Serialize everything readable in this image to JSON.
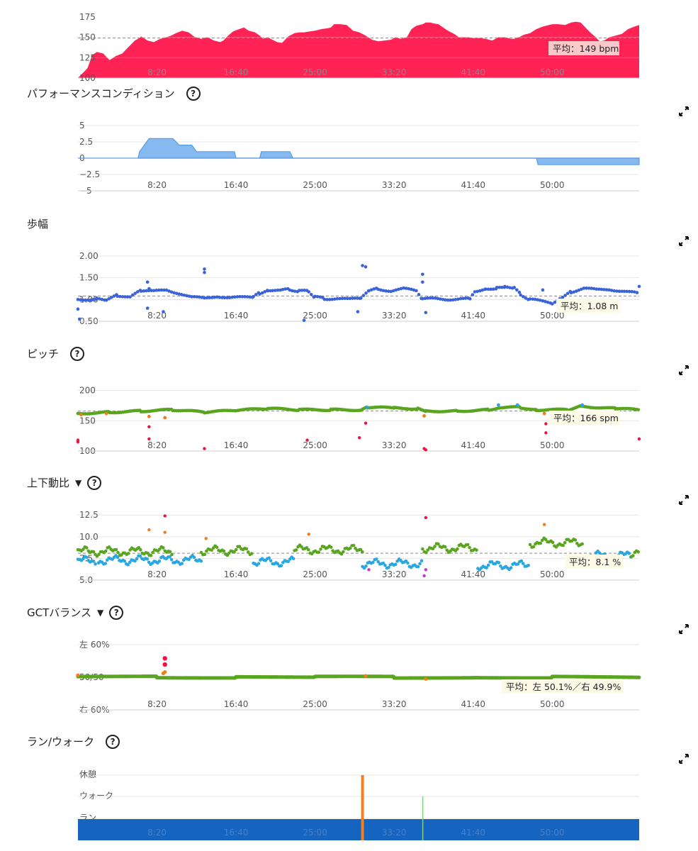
{
  "x_ticks": [
    "8:20",
    "16:40",
    "25:00",
    "33:20",
    "41:40",
    "50:00"
  ],
  "sections": {
    "condition": {
      "title": "パフォーマンスコンディション"
    },
    "stride": {
      "title": "歩幅"
    },
    "pitch": {
      "title": "ピッチ"
    },
    "vratio": {
      "title": "上下動比"
    },
    "gct": {
      "title": "GCTバランス"
    },
    "runwalk": {
      "title": "ラン/ウォーク"
    }
  },
  "caret_symbol": "▼",
  "help_symbol": "?",
  "colors": {
    "hr": "#ff2255",
    "condition": "#86b9ef",
    "stride": "#3b63d9",
    "green": "#5aa51f",
    "blue": "#28a7e1",
    "orange": "#ee7e1a",
    "red": "#ee1144",
    "magenta": "#cc33cc",
    "run": "#1565c0",
    "rest": "#f08020",
    "walk": "#7fd17f"
  },
  "chart_data": [
    {
      "id": "hr",
      "type": "area",
      "y_ticks": [
        "175",
        "150",
        "125",
        "100"
      ],
      "ylim": [
        100,
        180
      ],
      "average": 149,
      "avg_label": "平均：149 bpm",
      "x": [
        0,
        60,
        90,
        120,
        160,
        200,
        240,
        280,
        300,
        330,
        360,
        380,
        400,
        440,
        480,
        520,
        560,
        590,
        620,
        660,
        700,
        740,
        780,
        820,
        860,
        900,
        920,
        950,
        980,
        1020,
        1050,
        1080,
        1120,
        1150,
        1170,
        1200,
        1240,
        1260,
        1290,
        1310,
        1330,
        1370,
        1400,
        1430,
        1460,
        1500,
        1540,
        1580,
        1600,
        1620,
        1660,
        1700,
        1740,
        1780,
        1820,
        1860,
        1900,
        1940,
        1980,
        2010,
        2040,
        2080,
        2110,
        2140,
        2180,
        2200,
        2230,
        2250,
        2280,
        2310,
        2340,
        2380,
        2410,
        2440,
        2470,
        2500,
        2540,
        2580,
        2620,
        2660,
        2700,
        2740,
        2760,
        2790,
        2820,
        2860,
        2900,
        2940,
        2980,
        3000,
        3040,
        3080,
        3120,
        3150,
        3180,
        3210,
        3240,
        3270,
        3300,
        3330,
        3360,
        3400,
        3440,
        3480,
        3520,
        3550
      ],
      "values": [
        100,
        112,
        128,
        132,
        130,
        122,
        127,
        130,
        134,
        140,
        146,
        148,
        151,
        146,
        144,
        148,
        150,
        152,
        155,
        158,
        156,
        150,
        148,
        150,
        146,
        144,
        146,
        152,
        157,
        160,
        162,
        158,
        156,
        152,
        148,
        150,
        146,
        144,
        143,
        147,
        151,
        155,
        156,
        156,
        157,
        158,
        160,
        161,
        162,
        166,
        166,
        165,
        158,
        156,
        152,
        147,
        145,
        146,
        147,
        150,
        148,
        150,
        160,
        164,
        166,
        168,
        168,
        167,
        166,
        162,
        158,
        154,
        150,
        150,
        150,
        149,
        149,
        148,
        146,
        150,
        150,
        148,
        148,
        150,
        153,
        155,
        160,
        163,
        165,
        166,
        166,
        165,
        168,
        169,
        168,
        162,
        156,
        151,
        145,
        146,
        150,
        152,
        154,
        160,
        163,
        165
      ]
    },
    {
      "id": "condition",
      "type": "area",
      "y_ticks": [
        "5",
        "2.5",
        "0",
        "−2.5",
        "−5"
      ],
      "ylim": [
        -5,
        5
      ],
      "x": [
        0,
        380,
        390,
        420,
        450,
        600,
        640,
        720,
        750,
        990,
        1000,
        1150,
        1160,
        1340,
        1360,
        2900,
        2910,
        3550
      ],
      "values": [
        0,
        0,
        1,
        2,
        3,
        3,
        2,
        2,
        1,
        1,
        0,
        0,
        1,
        1,
        0,
        0,
        -1,
        -1
      ]
    },
    {
      "id": "stride",
      "type": "scatter",
      "y_ticks": [
        "2.00",
        "1.50",
        "1.00",
        "0.50"
      ],
      "ylim": [
        0.5,
        2.0
      ],
      "average": 1.08,
      "avg_label": "平均：1.08 m",
      "runs": [
        [
          0,
          1.0
        ],
        [
          120,
          1.02
        ],
        [
          180,
          1.0
        ],
        [
          250,
          1.1
        ],
        [
          330,
          1.05
        ],
        [
          400,
          1.2
        ],
        [
          480,
          1.18
        ],
        [
          560,
          1.22
        ],
        [
          640,
          1.15
        ],
        [
          720,
          1.05
        ],
        [
          800,
          1.02
        ],
        [
          880,
          1.08
        ],
        [
          960,
          1.05
        ],
        [
          1040,
          1.04
        ],
        [
          1110,
          1.05
        ],
        [
          1150,
          1.15
        ],
        [
          1200,
          1.22
        ],
        [
          1280,
          1.2
        ],
        [
          1340,
          1.23
        ],
        [
          1400,
          1.2
        ],
        [
          1460,
          1.18
        ],
        [
          1500,
          1.05
        ],
        [
          1560,
          1.02
        ],
        [
          1640,
          1.03
        ],
        [
          1720,
          1.0
        ],
        [
          1790,
          1.02
        ],
        [
          1840,
          1.18
        ],
        [
          1900,
          1.25
        ],
        [
          1980,
          1.2
        ],
        [
          2060,
          1.24
        ],
        [
          2140,
          1.2
        ],
        [
          2180,
          1.0
        ],
        [
          2260,
          1.02
        ],
        [
          2340,
          1.01
        ],
        [
          2420,
          1.02
        ],
        [
          2480,
          1.01
        ],
        [
          2510,
          1.2
        ],
        [
          2580,
          1.25
        ],
        [
          2650,
          1.27
        ],
        [
          2700,
          1.3
        ],
        [
          2760,
          1.28
        ],
        [
          2800,
          1.12
        ],
        [
          2860,
          1.0
        ],
        [
          2940,
          0.95
        ],
        [
          3000,
          0.92
        ],
        [
          3050,
          1.02
        ],
        [
          3120,
          1.18
        ],
        [
          3200,
          1.25
        ],
        [
          3280,
          1.22
        ],
        [
          3360,
          1.24
        ],
        [
          3440,
          1.2
        ],
        [
          3520,
          1.15
        ],
        [
          3550,
          1.12
        ]
      ],
      "outliers": [
        [
          0,
          0.78
        ],
        [
          10,
          0.55
        ],
        [
          440,
          1.4
        ],
        [
          440,
          0.8
        ],
        [
          450,
          1.25
        ],
        [
          540,
          0.72
        ],
        [
          800,
          1.7
        ],
        [
          800,
          1.62
        ],
        [
          1430,
          0.52
        ],
        [
          1770,
          0.72
        ],
        [
          1800,
          1.78
        ],
        [
          1820,
          1.75
        ],
        [
          2180,
          1.58
        ],
        [
          2180,
          1.4
        ],
        [
          2200,
          0.7
        ],
        [
          2940,
          1.22
        ],
        [
          3550,
          1.3
        ]
      ]
    },
    {
      "id": "pitch",
      "type": "scatter",
      "y_ticks": [
        "200",
        "150",
        "100"
      ],
      "ylim": [
        100,
        210
      ],
      "average": 166,
      "avg_label": "平均：166 spm",
      "runs": [
        [
          0,
          162
        ],
        [
          200,
          164
        ],
        [
          400,
          166
        ],
        [
          600,
          168
        ],
        [
          800,
          164
        ],
        [
          1000,
          167
        ],
        [
          1200,
          170
        ],
        [
          1400,
          168
        ],
        [
          1600,
          168
        ],
        [
          1800,
          168
        ],
        [
          1830,
          172
        ],
        [
          2000,
          171
        ],
        [
          2150,
          170
        ],
        [
          2200,
          166
        ],
        [
          2400,
          166
        ],
        [
          2600,
          168
        ],
        [
          2660,
          172
        ],
        [
          2800,
          172
        ],
        [
          2900,
          168
        ],
        [
          3100,
          168
        ],
        [
          3180,
          174
        ],
        [
          3400,
          170
        ],
        [
          3550,
          168
        ]
      ],
      "outliers_orange": [
        [
          20,
          160
        ],
        [
          180,
          162
        ],
        [
          450,
          157
        ],
        [
          550,
          155
        ],
        [
          2190,
          158
        ],
        [
          2950,
          162
        ]
      ],
      "outliers_red": [
        [
          0,
          118
        ],
        [
          0,
          115
        ],
        [
          450,
          120
        ],
        [
          450,
          140
        ],
        [
          800,
          104
        ],
        [
          1450,
          118
        ],
        [
          1780,
          122
        ],
        [
          1820,
          146
        ],
        [
          2190,
          104
        ],
        [
          2200,
          102
        ],
        [
          2960,
          145
        ],
        [
          2960,
          130
        ],
        [
          3550,
          120
        ]
      ],
      "outliers_blue": [
        [
          1830,
          172
        ],
        [
          2660,
          176
        ],
        [
          2780,
          176
        ],
        [
          3190,
          176
        ]
      ]
    },
    {
      "id": "vratio",
      "type": "scatter",
      "y_ticks": [
        "12.5",
        "10.0",
        "7.5",
        "5.0"
      ],
      "ylim": [
        5,
        13.5
      ],
      "average": 8.1,
      "avg_label": "平均：8.1 %",
      "green_segments": [
        [
          0,
          600,
          8.3
        ],
        [
          780,
          1110,
          8.4
        ],
        [
          1370,
          1800,
          8.5
        ],
        [
          2180,
          2530,
          8.7
        ],
        [
          2860,
          3200,
          9.3
        ],
        [
          3500,
          3550,
          8.2
        ]
      ],
      "blue_segments": [
        [
          0,
          120,
          7.2
        ],
        [
          130,
          780,
          7.3
        ],
        [
          1110,
          1370,
          7.1
        ],
        [
          1800,
          2180,
          6.9
        ],
        [
          2530,
          2860,
          6.7
        ],
        [
          3200,
          3500,
          7.8
        ]
      ],
      "outliers_orange": [
        [
          450,
          10.8
        ],
        [
          550,
          10.5
        ],
        [
          810,
          9.8
        ],
        [
          1460,
          10.3
        ],
        [
          2950,
          11.4
        ]
      ],
      "outliers_red": [
        [
          550,
          12.4
        ],
        [
          2200,
          12.2
        ]
      ],
      "outliers_magenta": [
        [
          1840,
          6.2
        ],
        [
          2190,
          5.5
        ],
        [
          2200,
          6.2
        ]
      ]
    },
    {
      "id": "gct",
      "type": "scatter",
      "y_ticks": [
        "左 60%",
        "50/50",
        "右 60%"
      ],
      "ylim": [
        -10,
        10
      ],
      "average_label": "平均：左 50.1%／右 49.9%",
      "runs": [
        [
          0,
          0.2
        ],
        [
          500,
          0.1
        ],
        [
          1000,
          0.0
        ],
        [
          1500,
          0.1
        ],
        [
          2000,
          0.0
        ],
        [
          2500,
          -0.1
        ],
        [
          3000,
          0.0
        ],
        [
          3550,
          -0.2
        ]
      ],
      "outliers_orange": [
        [
          0,
          0.6
        ],
        [
          540,
          1.2
        ],
        [
          550,
          1.6
        ],
        [
          1820,
          0.4
        ],
        [
          2200,
          -0.5
        ]
      ],
      "outliers_red": [
        [
          550,
          5.8
        ],
        [
          550,
          3.9
        ]
      ]
    },
    {
      "id": "runwalk",
      "type": "bar",
      "y_ticks": [
        "休憩",
        "ウォーク",
        "ラン"
      ],
      "markers": [
        {
          "x": 1800,
          "kind": "rest"
        },
        {
          "x": 2180,
          "kind": "walk"
        }
      ]
    }
  ]
}
